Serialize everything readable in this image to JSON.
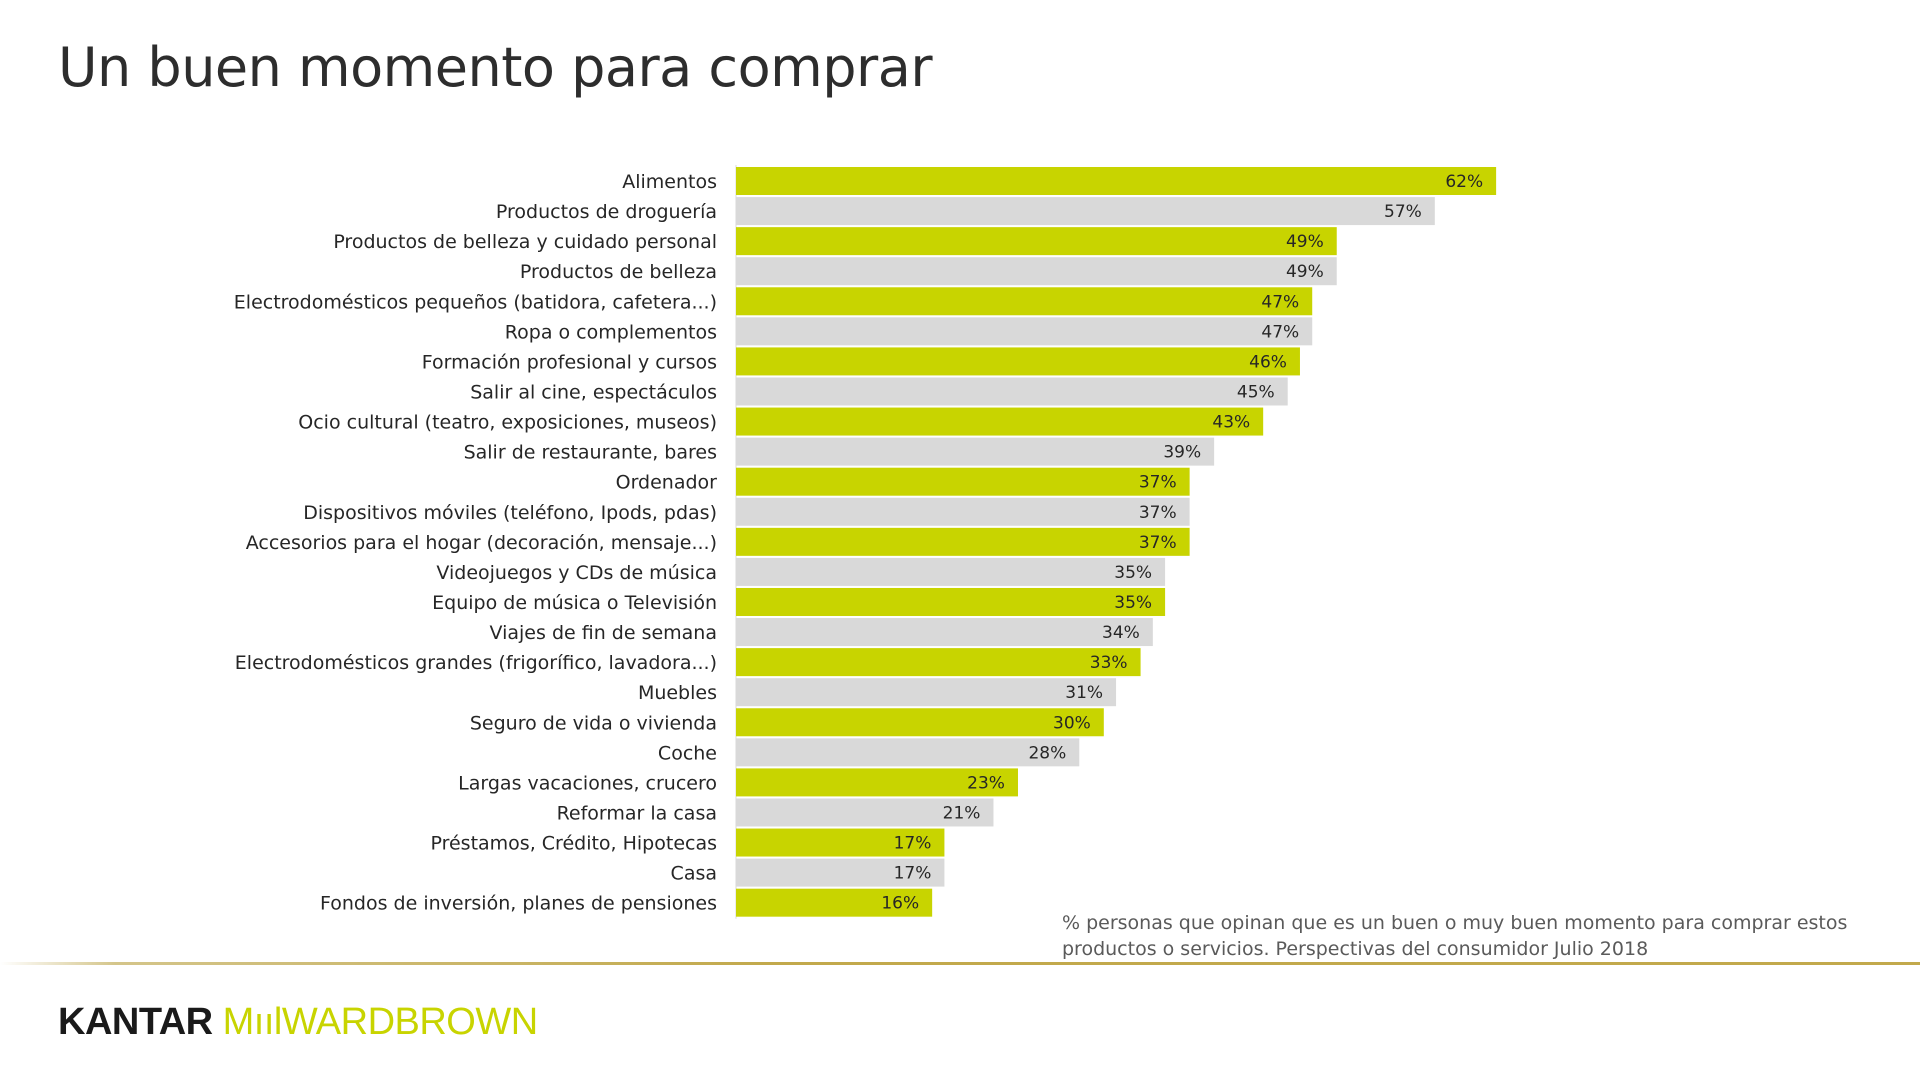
{
  "title": "Un buen momento para comprar",
  "note": "% personas que opinan que es un buen o muy buen momento para comprar estos productos o servicios. Perspectivas del consumidor Julio 2018",
  "logo": {
    "part1": "KANTAR",
    "part2": "MıılWARDBROWN"
  },
  "colors": {
    "accent": "#c8d400",
    "neutral": "#d9d9d9",
    "rule": "#c2a94c"
  },
  "chart_data": {
    "type": "bar",
    "orientation": "horizontal",
    "categories": [
      "Alimentos",
      "Productos de droguería",
      "Productos de belleza y cuidado personal",
      "Productos de belleza",
      "Electrodomésticos pequeños (batidora, cafetera...)",
      "Ropa o complementos",
      "Formación profesional y cursos",
      "Salir al cine, espectáculos",
      "Ocio cultural (teatro, exposiciones, museos)",
      "Salir de restaurante, bares",
      "Ordenador",
      "Dispositivos móviles (teléfono, Ipods, pdas)",
      "Accesorios para el hogar (decoración, mensaje...)",
      "Videojuegos y CDs de música",
      "Equipo de música o Televisión",
      "Viajes de fin de semana",
      "Electrodomésticos grandes (frigorífico, lavadora...)",
      "Muebles",
      "Seguro de vida o vivienda",
      "Coche",
      "Largas vacaciones, crucero",
      "Reformar la casa",
      "Préstamos, Crédito, Hipotecas",
      "Casa",
      "Fondos de inversión, planes de pensiones"
    ],
    "values": [
      62,
      57,
      49,
      49,
      47,
      47,
      46,
      45,
      43,
      39,
      37,
      37,
      37,
      35,
      35,
      34,
      33,
      31,
      30,
      28,
      23,
      21,
      17,
      17,
      16
    ],
    "value_labels": [
      "62%",
      "57%",
      "49%",
      "49%",
      "47%",
      "47%",
      "46%",
      "45%",
      "43%",
      "39%",
      "37%",
      "37%",
      "37%",
      "35%",
      "35%",
      "34%",
      "33%",
      "31%",
      "30%",
      "28%",
      "23%",
      "21%",
      "17%",
      "17%",
      "16%"
    ],
    "bar_colors": [
      "accent",
      "neutral"
    ],
    "xlim": [
      0,
      62
    ],
    "grid": false,
    "legend": "none",
    "unit": "%"
  }
}
